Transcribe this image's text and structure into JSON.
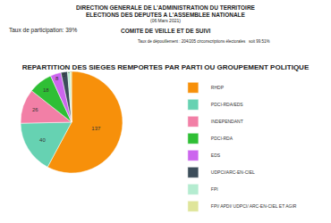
{
  "chart_data": {
    "type": "pie",
    "title": "REPARTITION DES SIEGES REMPORTES PAR PARTI OU GROUPEMENT POLITIQUE",
    "annotations": [
      "DIRECTION GENERALE DE L'ADMINISTRATION DU TERRITOIRE",
      "ELECTIONS DES DEPUTES A L'ASSEMBLEE NATIONALE",
      "(06 Mars 2021)",
      "Taux de participation: 39%",
      "COMITE DE VEILLE ET DE SUIVI",
      "Taux de dépouillement : 204/205 circonscriptions électorales   soit 99.51%"
    ],
    "categories": [
      "RHDP",
      "PDCI-RDA/EDS",
      "INDEPENDANT",
      "PDCI-RDA",
      "EDS",
      "UDPCI/ARC-EN-CIEL",
      "FPI",
      "FPI/ APDI/ UDPCI/ ARC-EN-CIEL ET AGIR"
    ],
    "values": [
      137,
      40,
      26,
      18,
      8,
      5,
      2,
      1
    ],
    "colors": [
      "#f7900a",
      "#66d2b2",
      "#f27fa6",
      "#2fbf35",
      "#cc66ee",
      "#3c4d5a",
      "#b4ecd0",
      "#dfe59a"
    ],
    "data_labels": true,
    "legend": "right"
  }
}
